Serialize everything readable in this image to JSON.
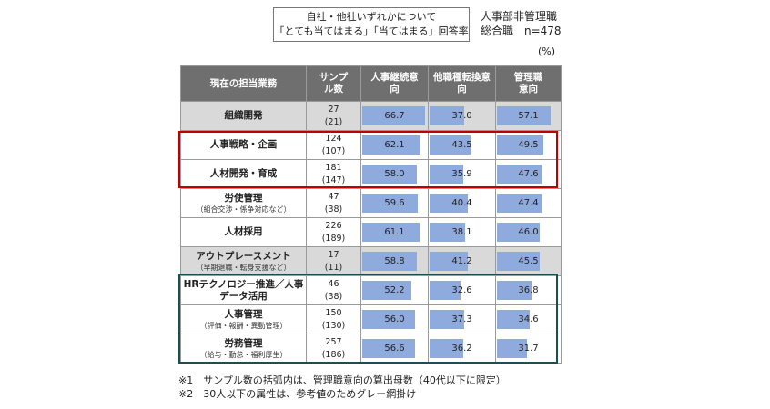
{
  "legend": {
    "line1": "自社・他社いずれかについて",
    "line2": "「とても当てはまる」「当てはまる」回答率"
  },
  "respondent": {
    "line1": "人事部非管理職",
    "line2": "総合職　n=478"
  },
  "unit": "(%)",
  "chart_data": {
    "type": "table",
    "headers": [
      "現在の担当業務",
      "サンプル数",
      "人事継続意向",
      "他職種転換意向",
      "管理職意向"
    ],
    "rows": [
      {
        "category": "組織開発",
        "sub": "",
        "sample": "27",
        "sample_mgmt": "(21)",
        "values": [
          66.7,
          37.0,
          57.1
        ],
        "gray": true
      },
      {
        "category": "人事戦略・企画",
        "sub": "",
        "sample": "124",
        "sample_mgmt": "(107)",
        "values": [
          62.1,
          43.5,
          49.5
        ],
        "gray": false
      },
      {
        "category": "人材開発・育成",
        "sub": "",
        "sample": "181",
        "sample_mgmt": "(147)",
        "values": [
          58.0,
          35.9,
          47.6
        ],
        "gray": false
      },
      {
        "category": "労使管理",
        "sub": "（組合交渉・係争対応など）",
        "sample": "47",
        "sample_mgmt": "(38)",
        "values": [
          59.6,
          40.4,
          47.4
        ],
        "gray": false
      },
      {
        "category": "人材採用",
        "sub": "",
        "sample": "226",
        "sample_mgmt": "(189)",
        "values": [
          61.1,
          38.1,
          46.0
        ],
        "gray": false
      },
      {
        "category": "アウトプレースメント",
        "sub": "（早期退職・転身支援など）",
        "sample": "17",
        "sample_mgmt": "(11)",
        "values": [
          58.8,
          41.2,
          45.5
        ],
        "gray": true
      },
      {
        "category": "HRテクノロジー推進／人事データ活用",
        "sub": "",
        "sample": "46",
        "sample_mgmt": "(38)",
        "values": [
          52.2,
          32.6,
          36.8
        ],
        "gray": false
      },
      {
        "category": "人事管理",
        "sub": "（評価・報酬・異動管理）",
        "sample": "150",
        "sample_mgmt": "(130)",
        "values": [
          56.0,
          37.3,
          34.6
        ],
        "gray": false
      },
      {
        "category": "労務管理",
        "sub": "（給与・勤怠・福利厚生）",
        "sample": "257",
        "sample_mgmt": "(186)",
        "values": [
          56.6,
          36.2,
          31.7
        ],
        "gray": false
      }
    ],
    "value_range": [
      0,
      70
    ],
    "bar_color": "#8faadc",
    "header_color": "#6f6f6f",
    "gray_fill": "#d9d9d9",
    "highlight_red": "#c00000",
    "highlight_teal": "#1f4e4e"
  },
  "notes": {
    "n1": "※1　サンプル数の括弧内は、管理職意向の算出母数（40代以下に限定）",
    "n2": "※2　30人以下の属性は、参考値のためグレー網掛け"
  }
}
